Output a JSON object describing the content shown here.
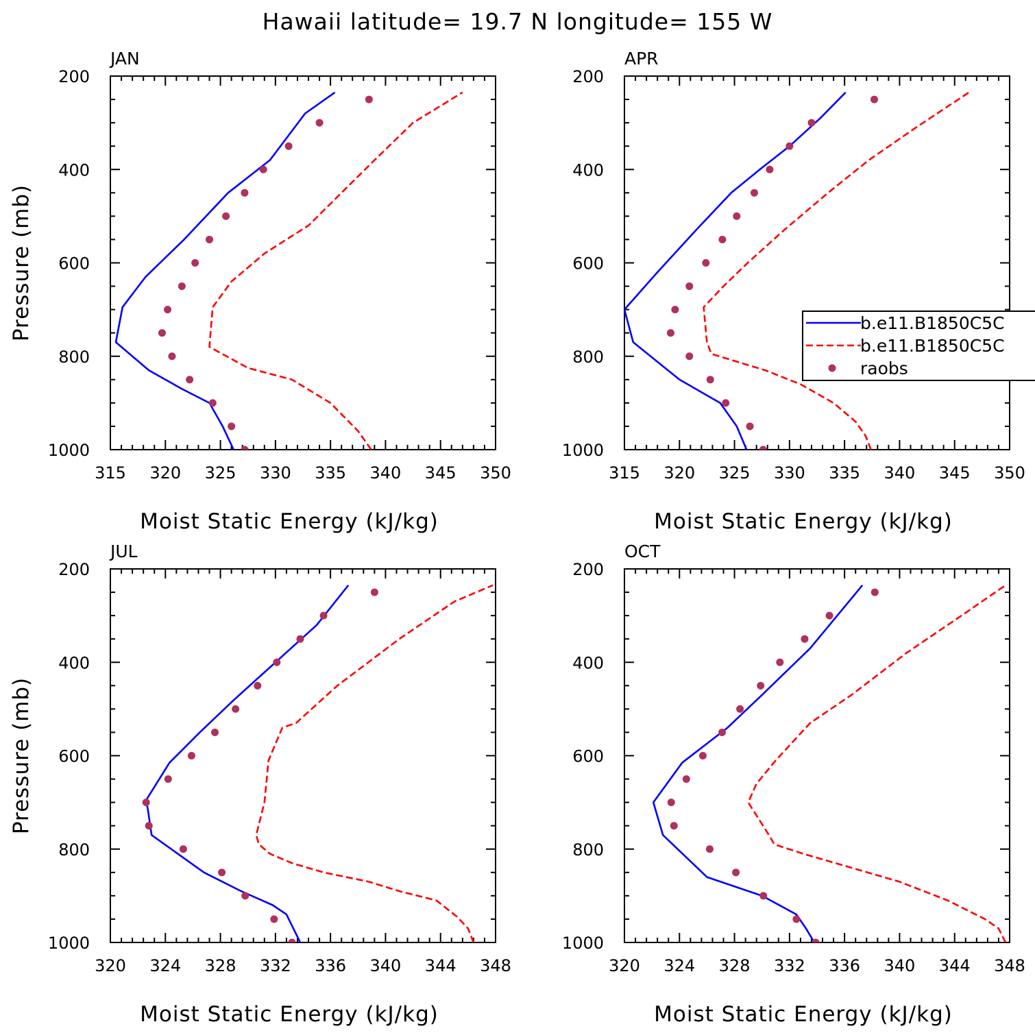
{
  "title": "Hawaii  latitude= 19.7 N longitude= 155 W",
  "chart_data": [
    {
      "type": "line",
      "panel": "JAN",
      "xlabel": "Moist Static Energy (kJ/kg)",
      "ylabel": "Pressure (mb)",
      "xlim": [
        315,
        350
      ],
      "xticks": [
        "315",
        "320",
        "325",
        "330",
        "335",
        "340",
        "345",
        "350"
      ],
      "ylim": [
        200,
        1000
      ],
      "yticks": [
        "200",
        "400",
        "600",
        "800",
        "1000"
      ],
      "y_inverted": true,
      "series": [
        {
          "name": "b.e11.B1850C5C",
          "style": "solid",
          "color": "#0000ff",
          "x": [
            326.2,
            325.2,
            324.0,
            321.5,
            318.5,
            315.5,
            316.1,
            318.2,
            321.7,
            325.7,
            329.5,
            332.7,
            335.4
          ],
          "y": [
            1000,
            950,
            900,
            870,
            830,
            770,
            695,
            630,
            550,
            450,
            380,
            280,
            235
          ]
        },
        {
          "name": "b.e11.B1850C5C",
          "style": "dashed",
          "color": "#ff0000",
          "x": [
            338.7,
            337.5,
            335.0,
            331.5,
            327.5,
            324.0,
            324.3,
            326.0,
            329.0,
            333.0,
            336.0,
            339.0,
            342.5,
            347.0
          ],
          "y": [
            1000,
            960,
            900,
            850,
            825,
            780,
            695,
            640,
            580,
            520,
            450,
            380,
            300,
            235
          ]
        },
        {
          "name": "raobs",
          "style": "markers",
          "color": "#b0305e",
          "x": [
            327.2,
            326.0,
            324.3,
            322.2,
            320.6,
            319.7,
            320.2,
            321.5,
            322.7,
            324.0,
            325.5,
            327.2,
            328.9,
            331.2,
            334.0,
            338.5
          ],
          "y": [
            1000,
            950,
            900,
            850,
            800,
            750,
            700,
            650,
            600,
            550,
            500,
            450,
            400,
            350,
            300,
            250
          ]
        }
      ]
    },
    {
      "type": "line",
      "panel": "APR",
      "xlabel": "Moist Static Energy (kJ/kg)",
      "ylabel": "",
      "xlim": [
        315,
        350
      ],
      "xticks": [
        "315",
        "320",
        "325",
        "330",
        "335",
        "340",
        "345",
        "350"
      ],
      "ylim": [
        200,
        1000
      ],
      "yticks": [
        "200",
        "400",
        "600",
        "800",
        "1000"
      ],
      "y_inverted": true,
      "series": [
        {
          "name": "b.e11.B1850C5C",
          "style": "solid",
          "color": "#0000ff",
          "x": [
            326.1,
            325.2,
            323.7,
            320.0,
            315.8,
            315.0,
            318.0,
            321.5,
            324.7,
            327.3,
            330.0,
            332.8,
            335.1
          ],
          "y": [
            1000,
            950,
            900,
            850,
            770,
            700,
            620,
            530,
            450,
            400,
            350,
            290,
            235
          ]
        },
        {
          "name": "b.e11.B1850C5C",
          "style": "dashed",
          "color": "#ff0000",
          "x": [
            337.4,
            336.9,
            336.0,
            334.0,
            331.0,
            327.8,
            322.9,
            322.5,
            322.2,
            324.0,
            326.2,
            329.5,
            333.5,
            337.2,
            341.5,
            346.3
          ],
          "y": [
            1000,
            970,
            940,
            900,
            860,
            830,
            795,
            770,
            695,
            650,
            600,
            530,
            450,
            380,
            310,
            235
          ]
        },
        {
          "name": "raobs",
          "style": "markers",
          "color": "#b0305e",
          "x": [
            327.6,
            326.4,
            324.2,
            322.8,
            320.9,
            319.2,
            319.6,
            320.9,
            322.4,
            323.9,
            325.2,
            326.8,
            328.2,
            330.0,
            332.0,
            337.7
          ],
          "y": [
            1000,
            950,
            900,
            850,
            800,
            750,
            700,
            650,
            600,
            550,
            500,
            450,
            400,
            350,
            300,
            250
          ]
        }
      ],
      "legend": {
        "placement": "right-middle",
        "entries": [
          {
            "label": "b.e11.B1850C5C",
            "style": "solid",
            "color": "#0000ff"
          },
          {
            "label": "b.e11.B1850C5C",
            "style": "dashed",
            "color": "#ff0000"
          },
          {
            "label": "raobs",
            "style": "markers",
            "color": "#b0305e"
          }
        ]
      }
    },
    {
      "type": "line",
      "panel": "JUL",
      "xlabel": "Moist Static Energy (kJ/kg)",
      "ylabel": "Pressure (mb)",
      "xlim": [
        320,
        348
      ],
      "xticks": [
        "320",
        "324",
        "328",
        "332",
        "336",
        "340",
        "344",
        "348"
      ],
      "ylim": [
        200,
        1000
      ],
      "yticks": [
        "200",
        "400",
        "600",
        "800",
        "1000"
      ],
      "y_inverted": true,
      "series": [
        {
          "name": "b.e11.B1850C5C",
          "style": "solid",
          "color": "#0000ff",
          "x": [
            333.8,
            333.3,
            332.8,
            331.8,
            329.5,
            326.8,
            323.0,
            322.7,
            322.5,
            324.3,
            326.5,
            329.0,
            332.0,
            335.0,
            337.3
          ],
          "y": [
            1000,
            970,
            940,
            920,
            890,
            850,
            770,
            710,
            700,
            615,
            550,
            480,
            400,
            320,
            235
          ]
        },
        {
          "name": "b.e11.B1850C5C",
          "style": "dashed",
          "color": "#ff0000",
          "x": [
            346.4,
            346.0,
            345.2,
            343.7,
            341.0,
            338.8,
            335.5,
            333.2,
            331.6,
            330.8,
            330.6,
            331.2,
            331.5,
            332.5,
            333.5,
            336.5,
            341.0,
            345.0,
            347.8
          ],
          "y": [
            1000,
            970,
            945,
            910,
            890,
            870,
            850,
            830,
            810,
            790,
            770,
            700,
            610,
            540,
            530,
            450,
            350,
            270,
            235
          ]
        },
        {
          "name": "raobs",
          "style": "markers",
          "color": "#b0305e",
          "x": [
            333.2,
            331.9,
            329.8,
            328.1,
            325.3,
            322.8,
            322.6,
            324.2,
            325.9,
            327.6,
            329.1,
            330.7,
            332.1,
            333.8,
            335.5,
            339.2
          ],
          "y": [
            1000,
            950,
            900,
            850,
            800,
            750,
            700,
            650,
            600,
            550,
            500,
            450,
            400,
            350,
            300,
            250
          ]
        }
      ]
    },
    {
      "type": "line",
      "panel": "OCT",
      "xlabel": "Moist Static Energy (kJ/kg)",
      "ylabel": "",
      "xlim": [
        320,
        348
      ],
      "xticks": [
        "320",
        "324",
        "328",
        "332",
        "336",
        "340",
        "344",
        "348"
      ],
      "ylim": [
        200,
        1000
      ],
      "yticks": [
        "200",
        "400",
        "600",
        "800",
        "1000"
      ],
      "y_inverted": true,
      "series": [
        {
          "name": "b.e11.B1850C5C",
          "style": "solid",
          "color": "#0000ff",
          "x": [
            333.8,
            333.2,
            332.5,
            330.0,
            326.0,
            322.8,
            322.1,
            324.2,
            327.5,
            330.0,
            333.5,
            337.3
          ],
          "y": [
            1000,
            970,
            940,
            900,
            860,
            770,
            700,
            615,
            540,
            470,
            370,
            235
          ]
        },
        {
          "name": "b.e11.B1850C5C",
          "style": "dashed",
          "color": "#ff0000",
          "x": [
            347.7,
            347.2,
            346.2,
            343.5,
            340.0,
            336.5,
            333.0,
            330.9,
            330.5,
            329.0,
            329.6,
            331.0,
            333.5,
            336.5,
            340.5,
            344.5,
            347.7
          ],
          "y": [
            1000,
            970,
            950,
            910,
            870,
            840,
            810,
            790,
            770,
            700,
            660,
            610,
            530,
            470,
            380,
            300,
            235
          ]
        },
        {
          "name": "raobs",
          "style": "markers",
          "color": "#b0305e",
          "x": [
            333.9,
            332.5,
            330.1,
            328.1,
            326.2,
            323.6,
            323.4,
            324.5,
            325.7,
            327.1,
            328.4,
            329.9,
            331.3,
            333.1,
            334.9,
            338.2
          ],
          "y": [
            1000,
            950,
            900,
            850,
            800,
            750,
            700,
            650,
            600,
            550,
            500,
            450,
            400,
            350,
            300,
            250
          ]
        }
      ]
    }
  ]
}
